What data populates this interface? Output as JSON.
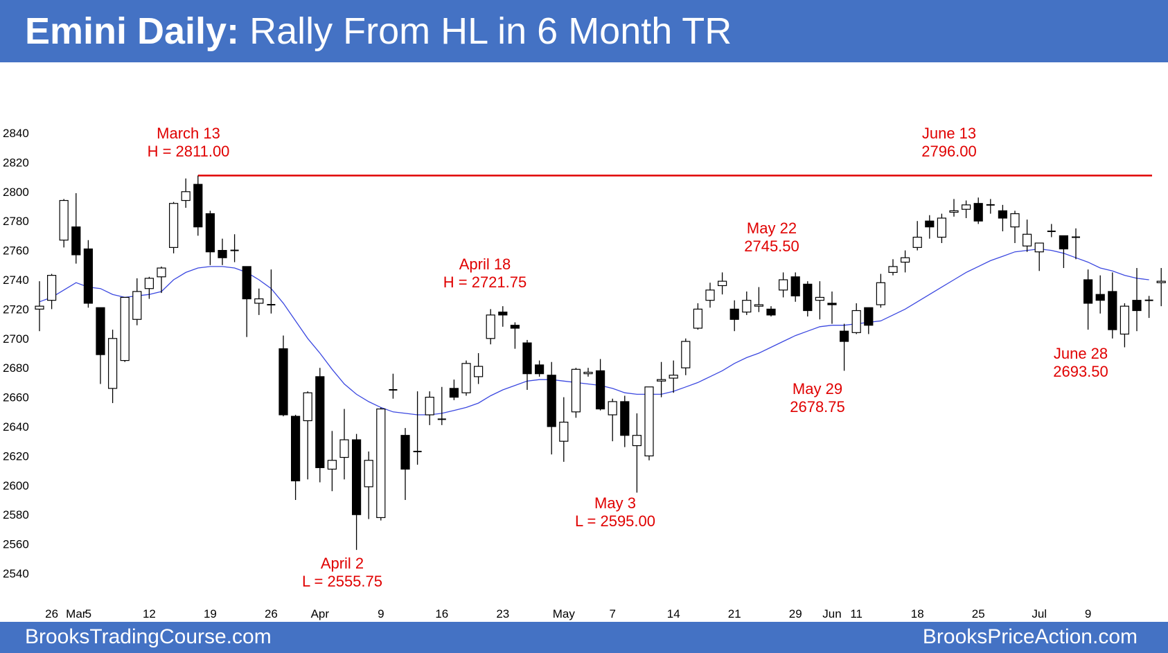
{
  "header": {
    "title_bold": "Emini Daily:",
    "title_rest": " Rally From HL in 6 Month TR"
  },
  "footer": {
    "left": "BrooksTradingCourse.com",
    "right": "BrooksPriceAction.com"
  },
  "colors": {
    "header_bg": "#4472c4",
    "annotation": "#e00000",
    "moving_average": "#3b48e0",
    "resistance_line": "#e00000"
  },
  "chart_data": {
    "type": "candlestick",
    "ylim": [
      2530,
      2850
    ],
    "y_ticks": [
      2540,
      2560,
      2580,
      2600,
      2620,
      2640,
      2660,
      2680,
      2700,
      2720,
      2740,
      2760,
      2780,
      2800,
      2820,
      2840
    ],
    "x_tick_labels": [
      {
        "i": 1,
        "label": "26"
      },
      {
        "i": 3,
        "label": "Mar"
      },
      {
        "i": 4,
        "label": "5"
      },
      {
        "i": 9,
        "label": "12"
      },
      {
        "i": 14,
        "label": "19"
      },
      {
        "i": 19,
        "label": "26"
      },
      {
        "i": 23,
        "label": "Apr"
      },
      {
        "i": 28,
        "label": "9"
      },
      {
        "i": 33,
        "label": "16"
      },
      {
        "i": 38,
        "label": "23"
      },
      {
        "i": 43,
        "label": "May"
      },
      {
        "i": 47,
        "label": "7"
      },
      {
        "i": 52,
        "label": "14"
      },
      {
        "i": 57,
        "label": "21"
      },
      {
        "i": 62,
        "label": "29"
      },
      {
        "i": 65,
        "label": "Jun"
      },
      {
        "i": 67,
        "label": "11"
      },
      {
        "i": 72,
        "label": "18"
      },
      {
        "i": 77,
        "label": "25"
      },
      {
        "i": 82,
        "label": "Jul"
      },
      {
        "i": 86,
        "label": "9"
      }
    ],
    "candles": [
      [
        2720,
        2722,
        2739,
        2705
      ],
      [
        2726,
        2743,
        2744,
        2720
      ],
      [
        2767,
        2794,
        2795,
        2762
      ],
      [
        2776,
        2757,
        2799,
        2751
      ],
      [
        2761,
        2724,
        2767,
        2721
      ],
      [
        2721,
        2689,
        2721,
        2669
      ],
      [
        2666,
        2700,
        2706,
        2656
      ],
      [
        2685,
        2728,
        2728,
        2684
      ],
      [
        2713,
        2732,
        2741,
        2709
      ],
      [
        2734,
        2741,
        2742,
        2727
      ],
      [
        2742,
        2748,
        2749,
        2731
      ],
      [
        2762,
        2792,
        2793,
        2758
      ],
      [
        2794,
        2800,
        2809,
        2789
      ],
      [
        2805,
        2776,
        2811,
        2770
      ],
      [
        2785,
        2759,
        2787,
        2750
      ],
      [
        2760,
        2755,
        2768,
        2750
      ],
      [
        2760,
        2760,
        2771,
        2752
      ],
      [
        2749,
        2727,
        2749,
        2701
      ],
      [
        2724,
        2727,
        2734,
        2716
      ],
      [
        2723,
        2723,
        2747,
        2717
      ],
      [
        2693,
        2648,
        2702,
        2647
      ],
      [
        2647,
        2603,
        2648,
        2590
      ],
      [
        2644,
        2663,
        2664,
        2604
      ],
      [
        2674,
        2612,
        2680,
        2602
      ],
      [
        2611,
        2617,
        2637,
        2596
      ],
      [
        2619,
        2631,
        2652,
        2604
      ],
      [
        2631,
        2580,
        2635,
        2556
      ],
      [
        2599,
        2617,
        2623,
        2577
      ],
      [
        2578,
        2652,
        2653,
        2576
      ],
      [
        2665,
        2665,
        2676,
        2659
      ],
      [
        2634,
        2611,
        2639,
        2590
      ],
      [
        2623,
        2623,
        2664,
        2614
      ],
      [
        2648,
        2660,
        2664,
        2641
      ],
      [
        2645,
        2645,
        2667,
        2641
      ],
      [
        2666,
        2660,
        2672,
        2658
      ],
      [
        2663,
        2683,
        2685,
        2661
      ],
      [
        2674,
        2681,
        2690,
        2669
      ],
      [
        2700,
        2716,
        2720,
        2696
      ],
      [
        2718,
        2716,
        2722,
        2708
      ],
      [
        2709,
        2707,
        2711,
        2693
      ],
      [
        2697,
        2676,
        2699,
        2665
      ],
      [
        2682,
        2676,
        2685,
        2674
      ],
      [
        2675,
        2640,
        2684,
        2621
      ],
      [
        2630,
        2643,
        2660,
        2616
      ],
      [
        2650,
        2679,
        2680,
        2646
      ],
      [
        2676,
        2677,
        2680,
        2674
      ],
      [
        2678,
        2652,
        2686,
        2651
      ],
      [
        2648,
        2657,
        2659,
        2630
      ],
      [
        2657,
        2634,
        2661,
        2626
      ],
      [
        2627,
        2634,
        2649,
        2595
      ],
      [
        2620,
        2667,
        2667,
        2617
      ],
      [
        2671,
        2672,
        2684,
        2660
      ],
      [
        2673,
        2675,
        2685,
        2663
      ],
      [
        2680,
        2698,
        2700,
        2675
      ],
      [
        2707,
        2720,
        2724,
        2706
      ],
      [
        2726,
        2733,
        2738,
        2721
      ],
      [
        2736,
        2739,
        2745,
        2730
      ],
      [
        2720,
        2713,
        2726,
        2705
      ],
      [
        2718,
        2726,
        2732,
        2716
      ],
      [
        2722,
        2723,
        2735,
        2718
      ],
      [
        2720,
        2716,
        2722,
        2715
      ],
      [
        2733,
        2740,
        2745,
        2728
      ],
      [
        2742,
        2729,
        2745,
        2725
      ],
      [
        2737,
        2719,
        2739,
        2715
      ],
      [
        2726,
        2728,
        2739,
        2713
      ],
      [
        2724,
        2723,
        2732,
        2710
      ],
      [
        2705,
        2698,
        2710,
        2678
      ],
      [
        2704,
        2719,
        2724,
        2703
      ],
      [
        2721,
        2709,
        2720,
        2703
      ],
      [
        2723,
        2738,
        2744,
        2721
      ],
      [
        2745,
        2749,
        2754,
        2743
      ],
      [
        2752,
        2755,
        2760,
        2745
      ],
      [
        2762,
        2769,
        2780,
        2760
      ],
      [
        2780,
        2776,
        2784,
        2768
      ],
      [
        2769,
        2782,
        2785,
        2765
      ],
      [
        2786,
        2787,
        2795,
        2783
      ],
      [
        2788,
        2791,
        2794,
        2782
      ],
      [
        2792,
        2780,
        2796,
        2778
      ],
      [
        2791,
        2791,
        2795,
        2785
      ],
      [
        2787,
        2782,
        2791,
        2773
      ],
      [
        2776,
        2785,
        2787,
        2765
      ],
      [
        2763,
        2771,
        2781,
        2759
      ],
      [
        2759,
        2765,
        2763,
        2746
      ],
      [
        2773,
        2773,
        2778,
        2769
      ],
      [
        2770,
        2761,
        2770,
        2748
      ],
      [
        2769,
        2769,
        2775,
        2754
      ],
      [
        2740,
        2724,
        2747,
        2706
      ],
      [
        2730,
        2726,
        2743,
        2717
      ],
      [
        2732,
        2706,
        2745,
        2700
      ],
      [
        2703,
        2722,
        2724,
        2694
      ],
      [
        2726,
        2719,
        2748,
        2705
      ],
      [
        2726,
        2726,
        2729,
        2714
      ],
      [
        2738,
        2739,
        2748,
        2722
      ]
    ],
    "moving_average": [
      2725,
      2728,
      2733,
      2738,
      2735,
      2734,
      2730,
      2728,
      2729,
      2730,
      2732,
      2740,
      2745,
      2748,
      2749,
      2749,
      2748,
      2745,
      2740,
      2734,
      2724,
      2712,
      2700,
      2690,
      2679,
      2669,
      2662,
      2657,
      2653,
      2650,
      2649,
      2648,
      2648,
      2649,
      2651,
      2653,
      2656,
      2661,
      2665,
      2668,
      2671,
      2672,
      2672,
      2671,
      2670,
      2669,
      2668,
      2666,
      2663,
      2662,
      2662,
      2662,
      2664,
      2667,
      2670,
      2674,
      2678,
      2683,
      2687,
      2690,
      2694,
      2698,
      2702,
      2705,
      2708,
      2709,
      2709,
      2710,
      2711,
      2712,
      2716,
      2720,
      2725,
      2730,
      2735,
      2740,
      2745,
      2749,
      2753,
      2756,
      2759,
      2760,
      2761,
      2760,
      2758,
      2755,
      2752,
      2748,
      2746,
      2743,
      2741,
      2740
    ],
    "resistance_line": {
      "value": 2811,
      "from_index": 13
    },
    "annotations": [
      {
        "lines": [
          "March 13",
          "H = 2811.00"
        ],
        "index": 13
      },
      {
        "lines": [
          "June 13",
          "2796.00"
        ],
        "index": 77
      },
      {
        "lines": [
          "April 18",
          "H = 2721.75"
        ],
        "index": 37
      },
      {
        "lines": [
          "May 22",
          "2745.50"
        ],
        "index": 60
      },
      {
        "lines": [
          "May 29",
          "2678.75"
        ],
        "index": 66
      },
      {
        "lines": [
          "June 28",
          "2693.50"
        ],
        "index": 89
      },
      {
        "lines": [
          "May 3",
          "L = 2595.00"
        ],
        "index": 49
      },
      {
        "lines": [
          "April 2",
          "L = 2555.75"
        ],
        "index": 26
      }
    ]
  }
}
